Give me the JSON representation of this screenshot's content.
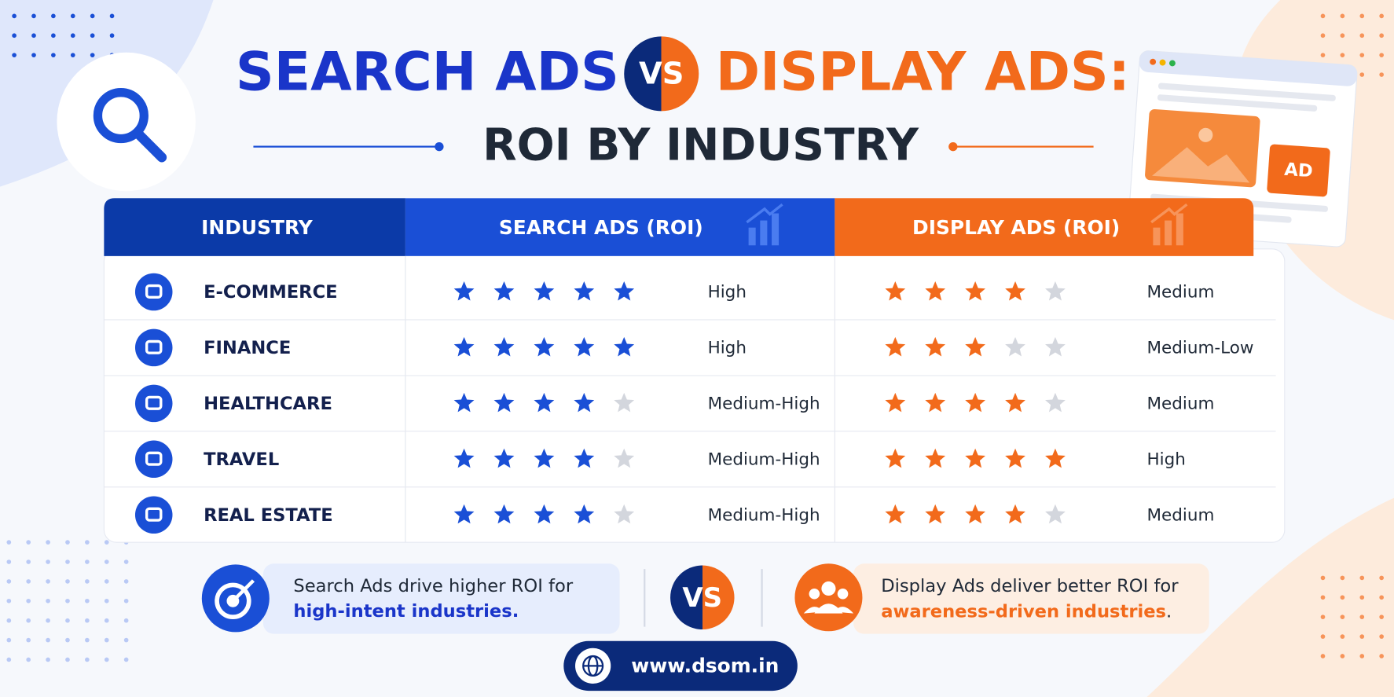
{
  "header": {
    "title_left": "SEARCH ADS",
    "vs": "VS",
    "title_right": "DISPLAY ADS:",
    "subtitle": "ROI BY INDUSTRY"
  },
  "browser_badge": "AD",
  "star_scale": 5,
  "table": {
    "headers": [
      "INDUSTRY",
      "SEARCH ADS (ROI)",
      "DISPLAY ADS (ROI)"
    ],
    "rows": [
      {
        "industry": "E-COMMERCE",
        "search_stars": 5,
        "search_label": "High",
        "display_stars": 4,
        "display_label": "Medium"
      },
      {
        "industry": "FINANCE",
        "search_stars": 5,
        "search_label": "High",
        "display_stars": 3,
        "display_label": "Medium-Low"
      },
      {
        "industry": "HEALTHCARE",
        "search_stars": 4,
        "search_label": "Medium-High",
        "display_stars": 4,
        "display_label": "Medium"
      },
      {
        "industry": "TRAVEL",
        "search_stars": 4,
        "search_label": "Medium-High",
        "display_stars": 5,
        "display_label": "High"
      },
      {
        "industry": "REAL ESTATE",
        "search_stars": 4,
        "search_label": "Medium-High",
        "display_stars": 4,
        "display_label": "Medium"
      }
    ]
  },
  "footer": {
    "search_note": [
      "Search Ads drive higher ROI for",
      "high-intent industries."
    ],
    "vs": "VS",
    "display_note": [
      "Display Ads deliver better ROI for",
      "awareness-driven industries",
      "."
    ],
    "url": "www.dsom.in"
  }
}
